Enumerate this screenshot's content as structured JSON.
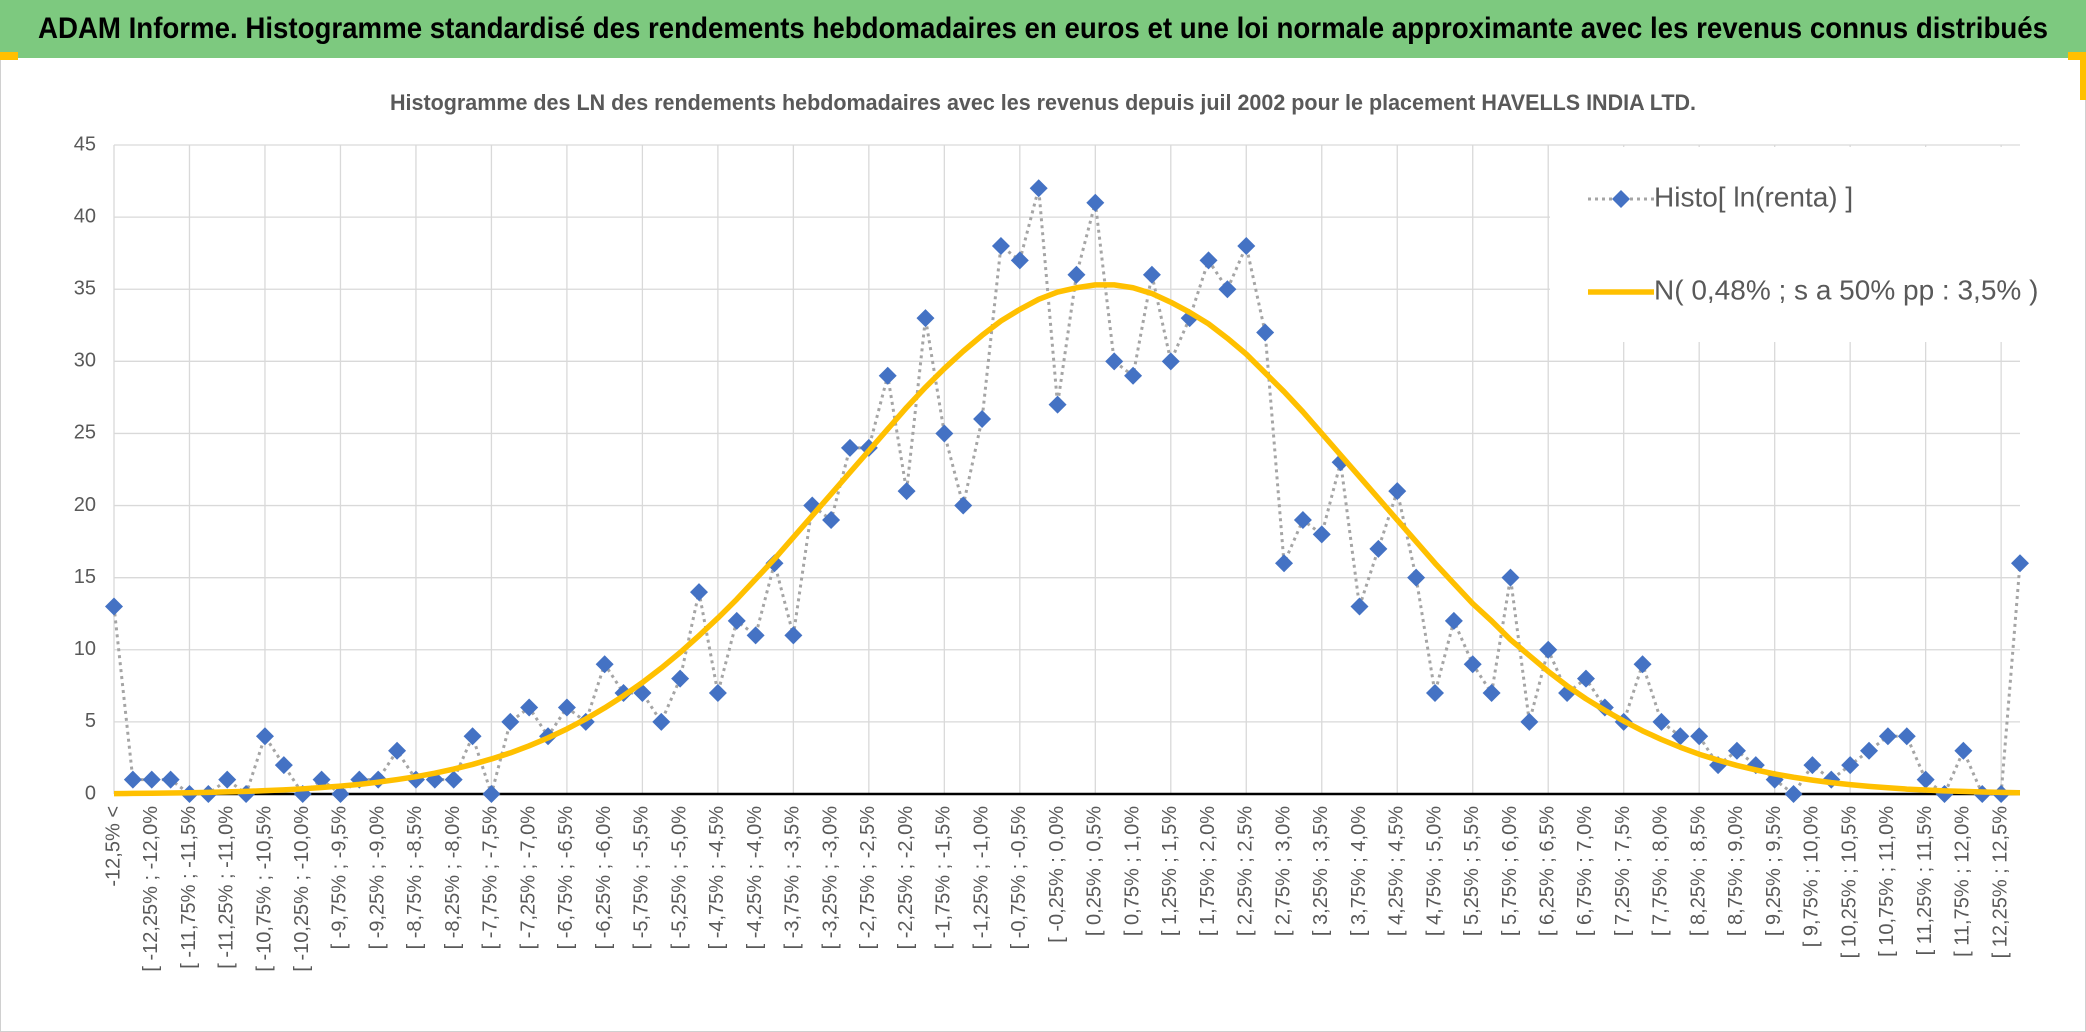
{
  "header": {
    "title": "ADAM Informe. Histogramme standardisé des rendements hebdomadaires en euros et une loi normale approximante avec les revenus connus distribués"
  },
  "chart_data": {
    "type": "line",
    "title": "Histogramme des LN des rendements hebdomadaires avec les revenus depuis juil 2002 pour le placement HAVELLS INDIA LTD.",
    "categories": [
      "-12,5% <",
      null,
      "[ -12,25% ; -12,0%",
      null,
      "[ -11,75% ; -11,5%",
      null,
      "[ -11,25% ; -11,0%",
      null,
      "[ -10,75% ; -10,5%",
      null,
      "[ -10,25% ; -10,0%",
      null,
      "[ -9,75% ; -9,5%",
      null,
      "[ -9,25% ; -9,0%",
      null,
      "[ -8,75% ; -8,5%",
      null,
      "[ -8,25% ; -8,0%",
      null,
      "[ -7,75% ; -7,5%",
      null,
      "[ -7,25% ; -7,0%",
      null,
      "[ -6,75% ; -6,5%",
      null,
      "[ -6,25% ; -6,0%",
      null,
      "[ -5,75% ; -5,5%",
      null,
      "[ -5,25% ; -5,0%",
      null,
      "[ -4,75% ; -4,5%",
      null,
      "[ -4,25% ; -4,0%",
      null,
      "[ -3,75% ; -3,5%",
      null,
      "[ -3,25% ; -3,0%",
      null,
      "[ -2,75% ; -2,5%",
      null,
      "[ -2,25% ; -2,0%",
      null,
      "[ -1,75% ; -1,5%",
      null,
      "[ -1,25% ; -1,0%",
      null,
      "[ -0,75% ; -0,5%",
      null,
      "[ -0,25% ; 0,0%",
      null,
      "[ 0,25% ; 0,5%",
      null,
      "[ 0,75% ; 1,0%",
      null,
      "[ 1,25% ; 1,5%",
      null,
      "[ 1,75% ; 2,0%",
      null,
      "[ 2,25% ; 2,5%",
      null,
      "[ 2,75% ; 3,0%",
      null,
      "[ 3,25% ; 3,5%",
      null,
      "[ 3,75% ; 4,0%",
      null,
      "[ 4,25% ; 4,5%",
      null,
      "[ 4,75% ; 5,0%",
      null,
      "[ 5,25% ; 5,5%",
      null,
      "[ 5,75% ; 6,0%",
      null,
      "[ 6,25% ; 6,5%",
      null,
      "[ 6,75% ; 7,0%",
      null,
      "[ 7,25% ; 7,5%",
      null,
      "[ 7,75% ; 8,0%",
      null,
      "[ 8,25% ; 8,5%",
      null,
      "[ 8,75% ; 9,0%",
      null,
      "[ 9,25% ; 9,5%",
      null,
      "[ 9,75% ; 10,0%",
      null,
      "[ 10,25% ; 10,5%",
      null,
      "[ 10,75% ; 11,0%",
      null,
      "[ 11,25% ; 11,5%",
      null,
      "[ 11,75% ; 12,0%",
      null,
      "[ 12,25% ; 12,5%",
      null
    ],
    "series": [
      {
        "name": "Histo[ ln(renta) ]",
        "color": "#4472c4",
        "line_color": "#a5a5a5",
        "markers": true,
        "values": [
          13,
          1,
          1,
          1,
          0,
          0,
          1,
          0,
          4,
          2,
          0,
          1,
          0,
          1,
          1,
          3,
          1,
          1,
          1,
          4,
          0,
          5,
          6,
          4,
          6,
          5,
          9,
          7,
          7,
          5,
          8,
          14,
          7,
          12,
          11,
          16,
          11,
          20,
          19,
          24,
          24,
          29,
          21,
          33,
          25,
          20,
          26,
          38,
          37,
          42,
          27,
          36,
          41,
          30,
          29,
          36,
          30,
          33,
          37,
          35,
          38,
          32,
          16,
          19,
          18,
          23,
          13,
          17,
          21,
          15,
          7,
          12,
          9,
          7,
          15,
          5,
          10,
          7,
          8,
          6,
          5,
          9,
          5,
          4,
          4,
          2,
          3,
          2,
          1,
          0,
          2,
          1,
          2,
          3,
          4,
          4,
          1,
          0,
          3,
          0,
          0,
          16
        ]
      },
      {
        "name": "N( 0,48% ; s a 50% pp : 3,5% )",
        "color": "#ffc000",
        "markers": false,
        "values": [
          0.03,
          0.04,
          0.05,
          0.07,
          0.09,
          0.11,
          0.15,
          0.18,
          0.23,
          0.29,
          0.36,
          0.45,
          0.55,
          0.67,
          0.82,
          1.0,
          1.2,
          1.44,
          1.73,
          2.05,
          2.43,
          2.85,
          3.34,
          3.89,
          4.51,
          5.2,
          5.97,
          6.81,
          7.73,
          8.73,
          9.81,
          10.98,
          12.2,
          13.5,
          14.9,
          16.3,
          17.8,
          19.3,
          20.8,
          22.3,
          23.8,
          25.3,
          26.8,
          28.2,
          29.5,
          30.7,
          31.8,
          32.8,
          33.6,
          34.3,
          34.8,
          35.1,
          35.3,
          35.3,
          35.1,
          34.7,
          34.1,
          33.4,
          32.6,
          31.6,
          30.5,
          29.2,
          27.9,
          26.5,
          25.0,
          23.5,
          22.0,
          20.5,
          19.0,
          17.5,
          16.0,
          14.6,
          13.2,
          12.0,
          10.7,
          9.6,
          8.5,
          7.5,
          6.6,
          5.8,
          5.06,
          4.38,
          3.78,
          3.24,
          2.76,
          2.35,
          1.98,
          1.67,
          1.39,
          1.16,
          0.96,
          0.79,
          0.65,
          0.53,
          0.43,
          0.34,
          0.28,
          0.22,
          0.18,
          0.14,
          0.11,
          0.09
        ]
      }
    ],
    "ylim": [
      0,
      45
    ],
    "yticks": [
      0,
      5,
      10,
      15,
      20,
      25,
      30,
      35,
      40,
      45
    ],
    "grid": true,
    "legend": "top-right"
  }
}
